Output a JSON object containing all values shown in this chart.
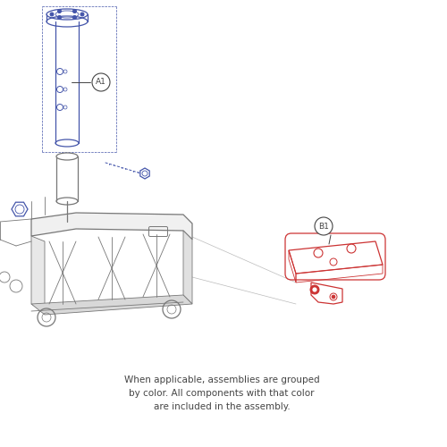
{
  "background_color": "#ffffff",
  "blue_color": "#4455aa",
  "red_color": "#cc3333",
  "gray_color": "#999999",
  "dark_gray": "#444444",
  "light_gray": "#bbbbbb",
  "mid_gray": "#777777",
  "annotation_text": "When applicable, assemblies are grouped\nby color. All components with that color\nare included in the assembly.",
  "label_A1": "A1",
  "label_B1": "B1",
  "figsize": [
    5.0,
    5.0
  ],
  "dpi": 100
}
